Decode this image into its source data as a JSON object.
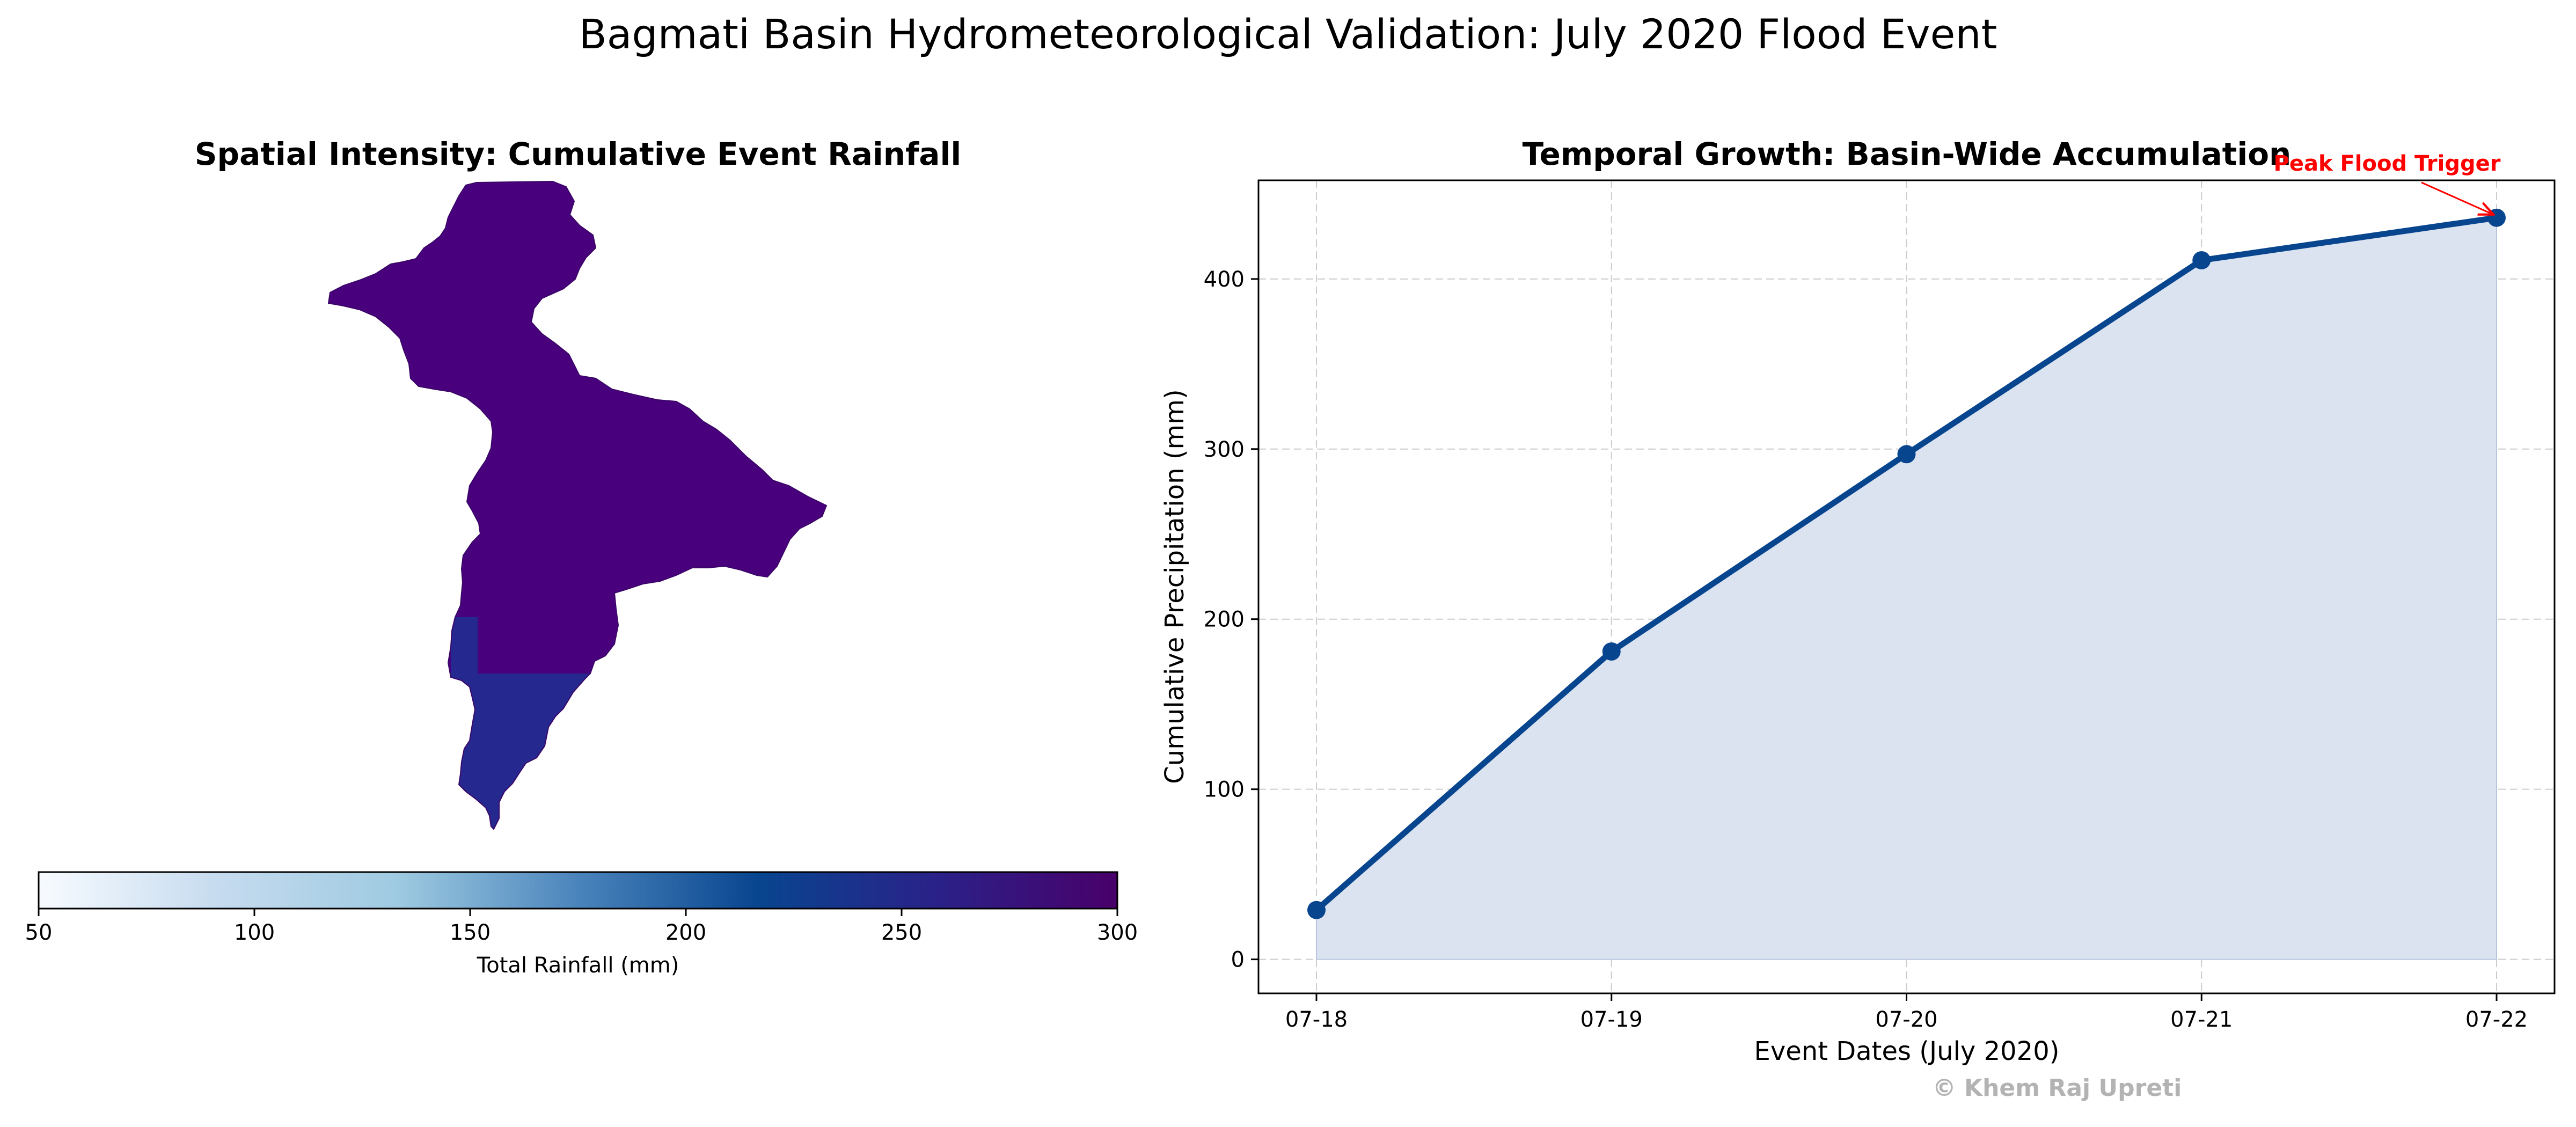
{
  "figure": {
    "suptitle": "Bagmati Basin Hydrometeorological Validation: July 2020 Flood Event",
    "watermark": "© Khem Raj Upreti"
  },
  "map_panel": {
    "title": "Spatial Intensity: Cumulative Event Rainfall",
    "colorbar": {
      "label": "Total Rainfall (mm)",
      "range": [
        50,
        300
      ],
      "ticks": [
        50,
        100,
        150,
        200,
        250,
        300
      ],
      "colormap": [
        "#f7fbff",
        "#c6dbef",
        "#9ecae1",
        "#4a84bc",
        "#08458f",
        "#2a2188",
        "#49006a"
      ]
    },
    "region_colors": {
      "north": "#49007c",
      "south": "#25288e"
    }
  },
  "chart_data": {
    "type": "area",
    "title": "Temporal Growth: Basin-Wide Accumulation",
    "xlabel": "Event Dates (July 2020)",
    "ylabel": "Cumulative Precipitation (mm)",
    "categories": [
      "07-18",
      "07-19",
      "07-20",
      "07-21",
      "07-22"
    ],
    "values": [
      29,
      181,
      297,
      411,
      436
    ],
    "ylim": [
      -20,
      458
    ],
    "yticks": [
      0,
      100,
      200,
      300,
      400
    ],
    "grid": true,
    "line_color": "#08458f",
    "fill_color": "#dbe3f0",
    "annotation": {
      "text": "Peak Flood Trigger",
      "target_index": 4,
      "color": "#ff0000"
    }
  }
}
